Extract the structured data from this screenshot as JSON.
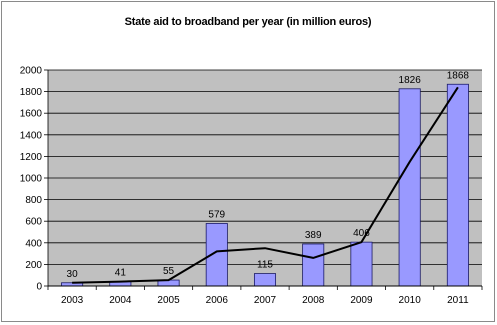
{
  "chart_data": {
    "type": "bar",
    "title": "State aid to broadband per year  (in million euros)",
    "categories": [
      "2003",
      "2004",
      "2005",
      "2006",
      "2007",
      "2008",
      "2009",
      "2010",
      "2011"
    ],
    "values": [
      30,
      41,
      55,
      579,
      115,
      389,
      406,
      1826,
      1868
    ],
    "data_labels": [
      "30",
      "41",
      "55",
      "579",
      "115",
      "389",
      "406",
      "1826",
      "1868"
    ],
    "trend_line": [
      30,
      41,
      55,
      320,
      350,
      260,
      406,
      1150,
      1840
    ],
    "ylim": [
      0,
      2000
    ],
    "yticks": [
      0,
      200,
      400,
      600,
      800,
      1000,
      1200,
      1400,
      1600,
      1800,
      2000
    ],
    "grid": true,
    "legend": "none",
    "colors": {
      "bar_fill": "#9999ff",
      "bar_stroke": "#1a1a66",
      "plot_background": "#c0c0c0",
      "gridline": "#000000",
      "trend_line": "#000000"
    }
  }
}
